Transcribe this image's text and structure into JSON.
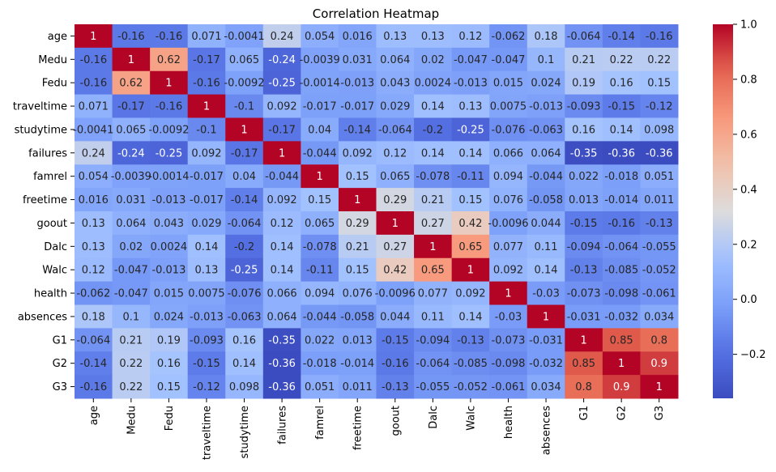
{
  "chart_data": {
    "type": "heatmap",
    "title": "Correlation Heatmap",
    "xlabel": "",
    "ylabel": "",
    "variables": [
      "age",
      "Medu",
      "Fedu",
      "traveltime",
      "studytime",
      "failures",
      "famrel",
      "freetime",
      "goout",
      "Dalc",
      "Walc",
      "health",
      "absences",
      "G1",
      "G2",
      "G3"
    ],
    "labels": [
      [
        "1",
        "-0.16",
        "-0.16",
        "0.071",
        "-0.0041",
        "0.24",
        "0.054",
        "0.016",
        "0.13",
        "0.13",
        "0.12",
        "-0.062",
        "0.18",
        "-0.064",
        "-0.14",
        "-0.16"
      ],
      [
        "-0.16",
        "1",
        "0.62",
        "-0.17",
        "0.065",
        "-0.24",
        "-0.0039",
        "0.031",
        "0.064",
        "0.02",
        "-0.047",
        "-0.047",
        "0.1",
        "0.21",
        "0.22",
        "0.22"
      ],
      [
        "-0.16",
        "0.62",
        "1",
        "-0.16",
        "-0.0092",
        "-0.25",
        "-0.0014",
        "-0.013",
        "0.043",
        "0.0024",
        "-0.013",
        "0.015",
        "0.024",
        "0.19",
        "0.16",
        "0.15"
      ],
      [
        "0.071",
        "-0.17",
        "-0.16",
        "1",
        "-0.1",
        "0.092",
        "-0.017",
        "-0.017",
        "0.029",
        "0.14",
        "0.13",
        "0.0075",
        "-0.013",
        "-0.093",
        "-0.15",
        "-0.12"
      ],
      [
        "-0.0041",
        "0.065",
        "-0.0092",
        "-0.1",
        "1",
        "-0.17",
        "0.04",
        "-0.14",
        "-0.064",
        "-0.2",
        "-0.25",
        "-0.076",
        "-0.063",
        "0.16",
        "0.14",
        "0.098"
      ],
      [
        "0.24",
        "-0.24",
        "-0.25",
        "0.092",
        "-0.17",
        "1",
        "-0.044",
        "0.092",
        "0.12",
        "0.14",
        "0.14",
        "0.066",
        "0.064",
        "-0.35",
        "-0.36",
        "-0.36"
      ],
      [
        "0.054",
        "-0.0039",
        "-0.0014",
        "-0.017",
        "0.04",
        "-0.044",
        "1",
        "0.15",
        "0.065",
        "-0.078",
        "-0.11",
        "0.094",
        "-0.044",
        "0.022",
        "-0.018",
        "0.051"
      ],
      [
        "0.016",
        "0.031",
        "-0.013",
        "-0.017",
        "-0.14",
        "0.092",
        "0.15",
        "1",
        "0.29",
        "0.21",
        "0.15",
        "0.076",
        "-0.058",
        "0.013",
        "-0.014",
        "0.011"
      ],
      [
        "0.13",
        "0.064",
        "0.043",
        "0.029",
        "-0.064",
        "0.12",
        "0.065",
        "0.29",
        "1",
        "0.27",
        "0.42",
        "-0.0096",
        "0.044",
        "-0.15",
        "-0.16",
        "-0.13"
      ],
      [
        "0.13",
        "0.02",
        "0.0024",
        "0.14",
        "-0.2",
        "0.14",
        "-0.078",
        "0.21",
        "0.27",
        "1",
        "0.65",
        "0.077",
        "0.11",
        "-0.094",
        "-0.064",
        "-0.055"
      ],
      [
        "0.12",
        "-0.047",
        "-0.013",
        "0.13",
        "-0.25",
        "0.14",
        "-0.11",
        "0.15",
        "0.42",
        "0.65",
        "1",
        "0.092",
        "0.14",
        "-0.13",
        "-0.085",
        "-0.052"
      ],
      [
        "-0.062",
        "-0.047",
        "0.015",
        "0.0075",
        "-0.076",
        "0.066",
        "0.094",
        "0.076",
        "-0.0096",
        "0.077",
        "0.092",
        "1",
        "-0.03",
        "-0.073",
        "-0.098",
        "-0.061"
      ],
      [
        "0.18",
        "0.1",
        "0.024",
        "-0.013",
        "-0.063",
        "0.064",
        "-0.044",
        "-0.058",
        "0.044",
        "0.11",
        "0.14",
        "-0.03",
        "1",
        "-0.031",
        "-0.032",
        "0.034"
      ],
      [
        "-0.064",
        "0.21",
        "0.19",
        "-0.093",
        "0.16",
        "-0.35",
        "0.022",
        "0.013",
        "-0.15",
        "-0.094",
        "-0.13",
        "-0.073",
        "-0.031",
        "1",
        "0.85",
        "0.8"
      ],
      [
        "-0.14",
        "0.22",
        "0.16",
        "-0.15",
        "0.14",
        "-0.36",
        "-0.018",
        "-0.014",
        "-0.16",
        "-0.064",
        "-0.085",
        "-0.098",
        "-0.032",
        "0.85",
        "1",
        "0.9"
      ],
      [
        "-0.16",
        "0.22",
        "0.15",
        "-0.12",
        "0.098",
        "-0.36",
        "0.051",
        "0.011",
        "-0.13",
        "-0.055",
        "-0.052",
        "-0.061",
        "0.034",
        "0.8",
        "0.9",
        "1"
      ]
    ],
    "colorbar": {
      "colormap": "coolwarm",
      "vmin": -0.36,
      "vmax": 1.0,
      "ticks": [
        "1.0",
        "0.8",
        "0.6",
        "0.4",
        "0.2",
        "0.0",
        "−0.2"
      ]
    },
    "colors": {
      "low": "#3b4cc0",
      "mid": "#dddcdc",
      "high": "#b40426"
    }
  }
}
